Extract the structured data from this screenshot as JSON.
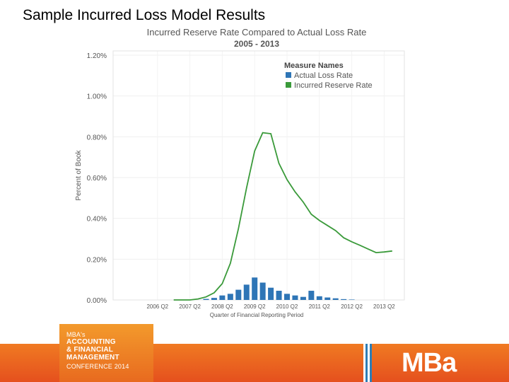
{
  "slide": {
    "title": "Sample Incurred Loss Model Results"
  },
  "footer": {
    "conference_lines": [
      "MBA's",
      "ACCOUNTING",
      "& FINANCIAL",
      "MANAGEMENT",
      "CONFERENCE 2014"
    ],
    "logo_text": "MBa",
    "colors": {
      "orange_top": "#f07a22",
      "orange_bottom": "#e5501e",
      "stripe_blue": "#2e7db5",
      "stripe_white": "#ffffff"
    }
  },
  "chart_data": {
    "type": "bar+line",
    "title": "Incurred Reserve Rate Compared to Actual Loss Rate",
    "subtitle": "2005 - 2013",
    "xlabel": "Quarter of Financial Reporting Period",
    "ylabel": "Percent of Book",
    "ylim": [
      0,
      1.2
    ],
    "yticks": [
      "0.00%",
      "0.20%",
      "0.40%",
      "0.60%",
      "0.80%",
      "1.00%",
      "1.20%"
    ],
    "xticks": [
      "2006 Q2",
      "2007 Q2",
      "2008 Q2",
      "2009 Q2",
      "2010 Q2",
      "2011 Q2",
      "2012 Q2",
      "2013 Q2"
    ],
    "legend": {
      "title": "Measure Names",
      "position": "top-right",
      "entries": [
        {
          "name": "Actual Loss Rate",
          "color": "#2e75b6"
        },
        {
          "name": "Incurred Reserve Rate",
          "color": "#3a9a3a"
        }
      ]
    },
    "quarters": [
      "2005 Q2",
      "2005 Q3",
      "2005 Q4",
      "2006 Q1",
      "2006 Q2",
      "2006 Q3",
      "2006 Q4",
      "2007 Q1",
      "2007 Q2",
      "2007 Q3",
      "2007 Q4",
      "2008 Q1",
      "2008 Q2",
      "2008 Q3",
      "2008 Q4",
      "2009 Q1",
      "2009 Q2",
      "2009 Q3",
      "2009 Q4",
      "2010 Q1",
      "2010 Q2",
      "2010 Q3",
      "2010 Q4",
      "2011 Q1",
      "2011 Q2",
      "2011 Q3",
      "2011 Q4",
      "2012 Q1",
      "2012 Q2",
      "2012 Q3",
      "2012 Q4",
      "2013 Q1",
      "2013 Q2",
      "2013 Q3"
    ],
    "series": [
      {
        "name": "Actual Loss Rate",
        "kind": "bar",
        "color": "#2e75b6",
        "values": [
          0,
          0,
          0,
          0,
          0,
          0,
          0,
          0,
          0,
          0,
          0.005,
          0.01,
          0.022,
          0.03,
          0.05,
          0.075,
          0.11,
          0.085,
          0.06,
          0.045,
          0.03,
          0.022,
          0.015,
          0.045,
          0.018,
          0.012,
          0.008,
          0.004,
          0.002,
          0,
          0,
          0,
          0,
          0
        ]
      },
      {
        "name": "Incurred Reserve Rate",
        "kind": "line",
        "color": "#3a9a3a",
        "values": [
          null,
          null,
          null,
          null,
          null,
          null,
          0.0,
          0.0,
          0.0,
          0.005,
          0.015,
          0.035,
          0.08,
          0.18,
          0.35,
          0.55,
          0.73,
          0.82,
          0.815,
          0.67,
          0.59,
          0.53,
          0.48,
          0.42,
          0.39,
          0.365,
          0.34,
          0.305,
          0.285,
          0.268,
          0.25,
          0.232,
          0.235,
          0.24
        ]
      }
    ]
  }
}
